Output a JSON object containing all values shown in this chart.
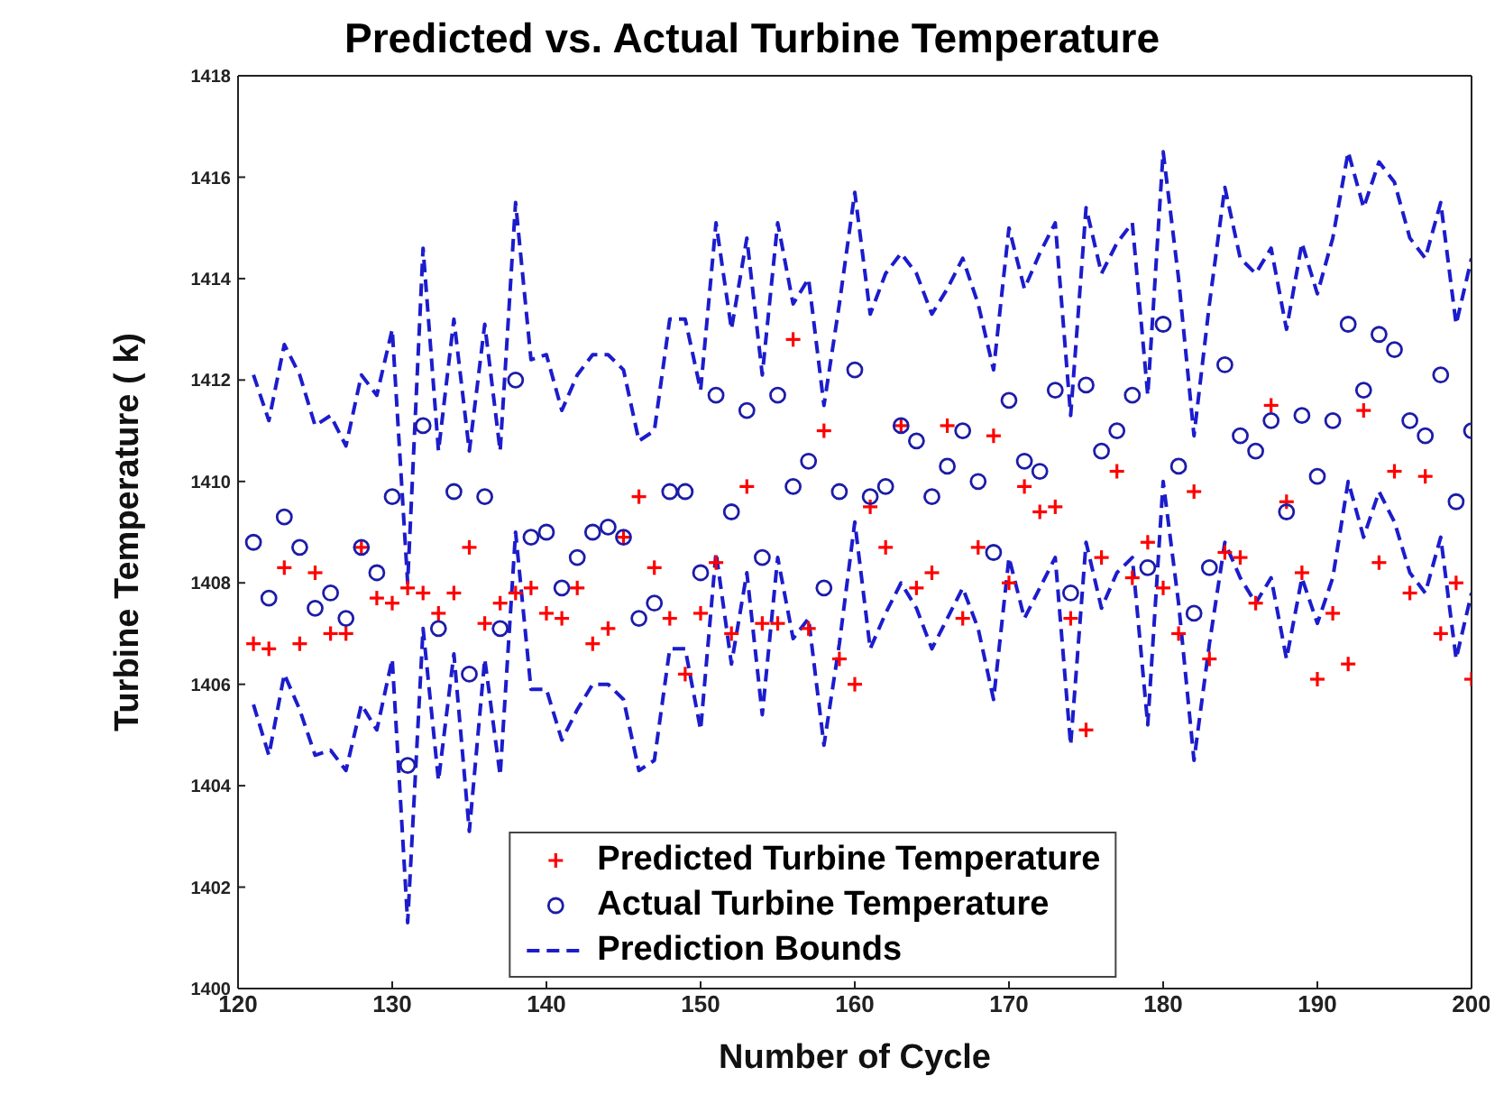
{
  "chart_data": {
    "type": "scatter",
    "title": "Predicted vs. Actual Turbine Temperature",
    "xlabel": "Number of Cycle",
    "ylabel": "Turbine Temperature ( k)",
    "x": [
      121,
      122,
      123,
      124,
      125,
      126,
      127,
      128,
      129,
      130,
      131,
      132,
      133,
      134,
      135,
      136,
      137,
      138,
      139,
      140,
      141,
      142,
      143,
      144,
      145,
      146,
      147,
      148,
      149,
      150,
      151,
      152,
      153,
      154,
      155,
      156,
      157,
      158,
      159,
      160,
      161,
      162,
      163,
      164,
      165,
      166,
      167,
      168,
      169,
      170,
      171,
      172,
      173,
      174,
      175,
      176,
      177,
      178,
      179,
      180,
      181,
      182,
      183,
      184,
      185,
      186,
      187,
      188,
      189,
      190,
      191,
      192,
      193,
      194,
      195,
      196,
      197,
      198,
      199,
      200
    ],
    "series": [
      {
        "name": "Predicted Turbine Temperature",
        "marker": "cross",
        "color": "#ff0000",
        "values": [
          1406.8,
          1406.7,
          1408.3,
          1406.8,
          1408.2,
          1407.0,
          1407.0,
          1408.7,
          1407.7,
          1407.6,
          1407.9,
          1407.8,
          1407.4,
          1407.8,
          1408.7,
          1407.2,
          1407.6,
          1407.8,
          1407.9,
          1407.4,
          1407.3,
          1407.9,
          1406.8,
          1407.1,
          1408.9,
          1409.7,
          1408.3,
          1407.3,
          1406.2,
          1407.4,
          1408.4,
          1407.0,
          1409.9,
          1407.2,
          1407.2,
          1412.8,
          1407.1,
          1411.0,
          1406.5,
          1406.0,
          1409.5,
          1408.7,
          1411.1,
          1407.9,
          1408.2,
          1411.1,
          1407.3,
          1408.7,
          1410.9,
          1408.0,
          1409.9,
          1409.4,
          1409.5,
          1407.3,
          1405.1,
          1408.5,
          1410.2,
          1408.1,
          1408.8,
          1407.9,
          1407.0,
          1409.8,
          1406.5,
          1408.6,
          1408.5,
          1407.6,
          1411.5,
          1409.6,
          1408.2,
          1406.1,
          1407.4,
          1406.4,
          1411.4,
          1408.4,
          1410.2,
          1407.8,
          1410.1,
          1407.0,
          1408.0,
          1406.1
        ]
      },
      {
        "name": "Actual Turbine Temperature",
        "marker": "circle",
        "color": "#1c1ca8",
        "values": [
          1408.8,
          1407.7,
          1409.3,
          1408.7,
          1407.5,
          1407.8,
          1407.3,
          1408.7,
          1408.2,
          1409.7,
          1404.4,
          1411.1,
          1407.1,
          1409.8,
          1406.2,
          1409.7,
          1407.1,
          1412.0,
          1408.9,
          1409.0,
          1407.9,
          1408.5,
          1409.0,
          1409.1,
          1408.9,
          1407.3,
          1407.6,
          1409.8,
          1409.8,
          1408.2,
          1411.7,
          1409.4,
          1411.4,
          1408.5,
          1411.7,
          1409.9,
          1410.4,
          1407.9,
          1409.8,
          1412.2,
          1409.7,
          1409.9,
          1411.1,
          1410.8,
          1409.7,
          1410.3,
          1411.0,
          1410.0,
          1408.6,
          1411.6,
          1410.4,
          1410.2,
          1411.8,
          1407.8,
          1411.9,
          1410.6,
          1411.0,
          1411.7,
          1408.3,
          1413.1,
          1410.3,
          1407.4,
          1408.3,
          1412.3,
          1410.9,
          1410.6,
          1411.2,
          1409.4,
          1411.3,
          1410.1,
          1411.2,
          1413.1,
          1411.8,
          1412.9,
          1412.6,
          1411.2,
          1410.9,
          1412.1,
          1409.6,
          1411.0
        ]
      },
      {
        "name": "Prediction Bounds",
        "type": "line",
        "line_style": "dashed",
        "color": "#1c1ccc",
        "values": [
          1412.1,
          1411.2,
          1412.7,
          1412.1,
          1411.1,
          1411.3,
          1410.7,
          1412.1,
          1411.7,
          1413.0,
          1408.0,
          1414.6,
          1410.6,
          1413.2,
          1410.6,
          1413.1,
          1410.6,
          1415.5,
          1412.4,
          1412.5,
          1411.4,
          1412.1,
          1412.5,
          1412.5,
          1412.2,
          1410.8,
          1411.0,
          1413.2,
          1413.2,
          1411.8,
          1415.1,
          1413.0,
          1414.8,
          1412.1,
          1415.1,
          1413.5,
          1414.0,
          1411.5,
          1413.5,
          1415.7,
          1413.3,
          1414.1,
          1414.5,
          1414.1,
          1413.3,
          1413.8,
          1414.4,
          1413.5,
          1412.2,
          1415.0,
          1413.8,
          1414.5,
          1415.1,
          1411.3,
          1415.4,
          1414.1,
          1414.7,
          1415.1,
          1411.7,
          1416.5,
          1414.0,
          1410.9,
          1413.5,
          1415.8,
          1414.4,
          1414.1,
          1414.6,
          1413.0,
          1414.7,
          1413.7,
          1414.8,
          1416.5,
          1415.4,
          1416.3,
          1415.9,
          1414.8,
          1414.4,
          1415.5,
          1413.1,
          1414.4
        ]
      },
      {
        "type": "line",
        "line_style": "dashed",
        "color": "#1c1ccc",
        "values": [
          1405.6,
          1404.6,
          1406.2,
          1405.5,
          1404.6,
          1404.7,
          1404.3,
          1405.6,
          1405.1,
          1406.5,
          1401.3,
          1407.1,
          1404.1,
          1406.6,
          1403.1,
          1406.5,
          1404.2,
          1409.0,
          1405.9,
          1405.9,
          1404.9,
          1405.5,
          1406.0,
          1406.0,
          1405.7,
          1404.3,
          1404.5,
          1406.7,
          1406.7,
          1405.1,
          1408.6,
          1406.4,
          1408.2,
          1405.4,
          1408.5,
          1406.9,
          1407.3,
          1404.8,
          1406.8,
          1409.2,
          1406.7,
          1407.4,
          1408.0,
          1407.5,
          1406.7,
          1407.3,
          1407.9,
          1407.1,
          1405.7,
          1408.5,
          1407.3,
          1407.9,
          1408.5,
          1404.8,
          1408.8,
          1407.5,
          1408.2,
          1408.5,
          1405.2,
          1410.0,
          1407.6,
          1404.5,
          1406.8,
          1408.8,
          1408.1,
          1407.6,
          1408.1,
          1406.5,
          1408.1,
          1407.2,
          1408.1,
          1410.0,
          1408.9,
          1409.8,
          1409.2,
          1408.2,
          1407.8,
          1408.9,
          1406.5,
          1407.8
        ]
      }
    ],
    "xlim": [
      120,
      200
    ],
    "xticks": [
      120,
      130,
      140,
      150,
      160,
      170,
      180,
      190,
      200
    ],
    "ylim": [
      1400,
      1418
    ],
    "yticks": [
      1400,
      1402,
      1404,
      1406,
      1408,
      1410,
      1412,
      1414,
      1416,
      1418
    ],
    "grid": false,
    "legend": "bottom"
  }
}
